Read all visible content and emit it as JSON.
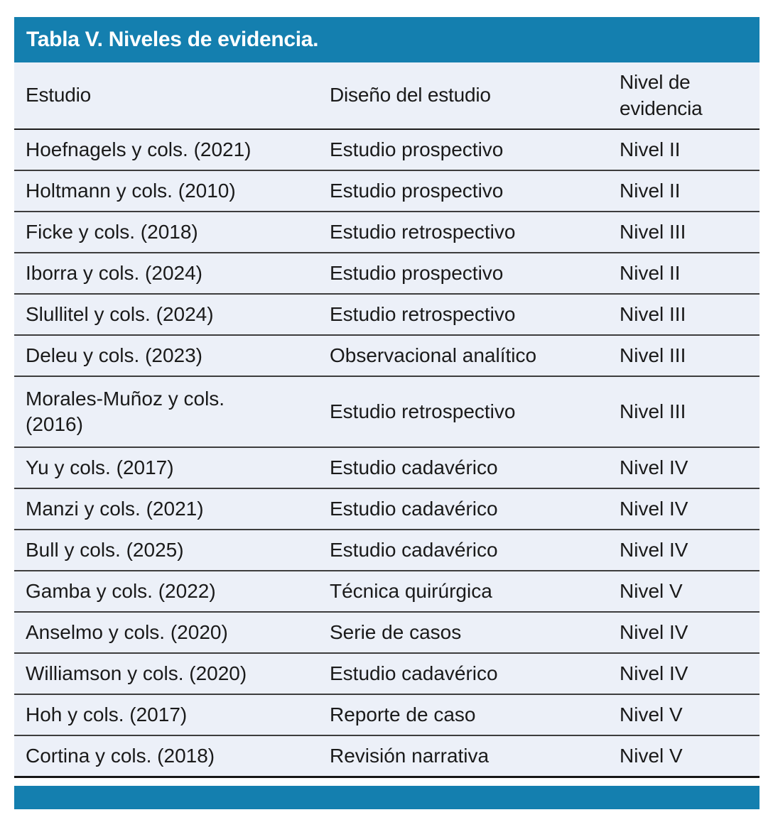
{
  "title": "Tabla V. Niveles de evidencia.",
  "colors": {
    "accent_bar": "#147FAF",
    "table_background": "#ECF0F8",
    "text": "#1a1a1a",
    "row_divider": "#3d3d3d",
    "strong_line": "#161616"
  },
  "columns": {
    "estudio": "Estudio",
    "diseno": "Diseño del estudio",
    "nivel": "Nivel de\nevidencia"
  },
  "rows": [
    {
      "estudio": "Hoefnagels y cols. (2021)",
      "diseno": "Estudio prospectivo",
      "nivel": "Nivel II"
    },
    {
      "estudio": "Holtmann y cols. (2010)",
      "diseno": "Estudio prospectivo",
      "nivel": "Nivel II"
    },
    {
      "estudio": "Ficke y cols. (2018)",
      "diseno": "Estudio retrospectivo",
      "nivel": "Nivel III"
    },
    {
      "estudio": "Iborra y cols. (2024)",
      "diseno": "Estudio prospectivo",
      "nivel": "Nivel II"
    },
    {
      "estudio": "Slullitel y cols. (2024)",
      "diseno": "Estudio retrospectivo",
      "nivel": "Nivel III"
    },
    {
      "estudio": "Deleu y cols. (2023)",
      "diseno": "Observacional analítico",
      "nivel": "Nivel III"
    },
    {
      "estudio": "Morales-Muñoz y cols.\n(2016)",
      "diseno": "Estudio retrospectivo",
      "nivel": "Nivel III"
    },
    {
      "estudio": "Yu y cols. (2017)",
      "diseno": "Estudio cadavérico",
      "nivel": "Nivel IV"
    },
    {
      "estudio": "Manzi y cols. (2021)",
      "diseno": "Estudio cadavérico",
      "nivel": "Nivel IV"
    },
    {
      "estudio": "Bull y cols. (2025)",
      "diseno": "Estudio cadavérico",
      "nivel": "Nivel IV"
    },
    {
      "estudio": "Gamba y cols. (2022)",
      "diseno": "Técnica quirúrgica",
      "nivel": "Nivel V"
    },
    {
      "estudio": "Anselmo y cols. (2020)",
      "diseno": "Serie de casos",
      "nivel": "Nivel IV"
    },
    {
      "estudio": "Williamson y cols. (2020)",
      "diseno": "Estudio cadavérico",
      "nivel": "Nivel IV"
    },
    {
      "estudio": "Hoh y cols. (2017)",
      "diseno": "Reporte de caso",
      "nivel": "Nivel V"
    },
    {
      "estudio": "Cortina y cols. (2018)",
      "diseno": "Revisión narrativa",
      "nivel": "Nivel V"
    }
  ]
}
